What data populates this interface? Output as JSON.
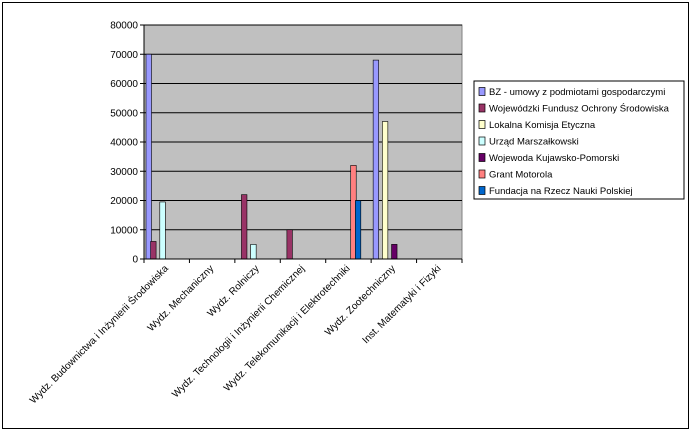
{
  "chart_data": {
    "type": "bar",
    "ylim": [
      0,
      80000
    ],
    "y_ticks": [
      "0",
      "10000",
      "20000",
      "30000",
      "40000",
      "50000",
      "60000",
      "70000",
      "80000"
    ],
    "grid": true,
    "legend_position": "right",
    "categories": [
      "Wydz. Budownictwa i Inżynierii Środowiska",
      "Wydz. Mechaniczny",
      "Wydz. Rolniczy",
      "Wydz. Technologii i Inżynierii Chemicznej",
      "Wydz. Telekomunikacji i Elektrotechniki",
      "Wydz. Zootechniczny",
      "Inst. Matematyki i Fizyki"
    ],
    "series": [
      {
        "name": "BZ - umowy z podmiotami gospodarczymi",
        "color": "#9999FF",
        "values": [
          70000,
          0,
          0,
          0,
          0,
          68000,
          0
        ]
      },
      {
        "name": "Wojewódzki Fundusz Ochrony Środowiska",
        "color": "#993366",
        "values": [
          6000,
          0,
          22000,
          10000,
          0,
          0,
          0
        ]
      },
      {
        "name": "Lokalna Komisja Etyczna",
        "color": "#FFFFCC",
        "values": [
          0,
          0,
          0,
          0,
          0,
          47000,
          0
        ]
      },
      {
        "name": "Urząd Marszałkowski",
        "color": "#CCFFFF",
        "values": [
          19500,
          0,
          5000,
          0,
          0,
          0,
          0
        ]
      },
      {
        "name": "Wojewoda Kujawsko-Pomorski",
        "color": "#660066",
        "values": [
          0,
          0,
          0,
          0,
          0,
          5000,
          0
        ]
      },
      {
        "name": "Grant Motorola",
        "color": "#FF8080",
        "values": [
          0,
          0,
          0,
          0,
          32000,
          0,
          0
        ]
      },
      {
        "name": "Fundacja na Rzecz Nauki Polskiej",
        "color": "#0066CC",
        "values": [
          0,
          0,
          0,
          0,
          20000,
          0,
          0
        ]
      }
    ]
  },
  "colors": {
    "plot_bg": "#C0C0C0",
    "grid": "#000000",
    "chart_bg": "#FFFFFF"
  }
}
